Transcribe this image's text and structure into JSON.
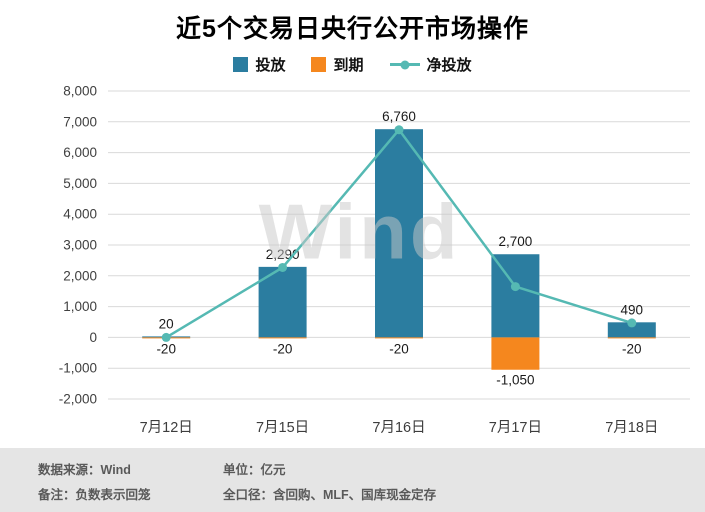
{
  "title": "近5个交易日央行公开市场操作",
  "watermark": "Wind",
  "legend": [
    {
      "label": "投放",
      "color": "#2b7da0",
      "type": "bar"
    },
    {
      "label": "到期",
      "color": "#f5871e",
      "type": "bar"
    },
    {
      "label": "净投放",
      "color": "#55b9b3",
      "type": "line"
    }
  ],
  "chart_data": {
    "type": "bar",
    "title": "近5个交易日央行公开市场操作",
    "categories": [
      "7月12日",
      "7月15日",
      "7月16日",
      "7月17日",
      "7月18日"
    ],
    "series": [
      {
        "name": "投放",
        "type": "bar",
        "color": "#2b7da0",
        "values": [
          20,
          2290,
          6760,
          2700,
          490
        ],
        "labels": [
          "20",
          "2,290",
          "6,760",
          "2,700",
          "490"
        ]
      },
      {
        "name": "到期",
        "type": "bar",
        "color": "#f5871e",
        "values": [
          -20,
          -20,
          -20,
          -1050,
          -20
        ],
        "labels": [
          "-20",
          "-20",
          "-20",
          "-1,050",
          "-20"
        ]
      },
      {
        "name": "净投放",
        "type": "line",
        "color": "#55b9b3",
        "values": [
          0,
          2270,
          6740,
          1650,
          470
        ]
      }
    ],
    "ylim": [
      -2000,
      8000
    ],
    "ytick_step": 1000,
    "ytick_labels": [
      "8,000",
      "7,000",
      "6,000",
      "5,000",
      "4,000",
      "3,000",
      "2,000",
      "1,000",
      "0",
      "-1,000",
      "-2,000"
    ],
    "grid": true,
    "legend_position": "top",
    "ylabel": "",
    "xlabel": ""
  },
  "footer": {
    "source_label": "数据来源：Wind",
    "note_label": "备注：负数表示回笼",
    "unit_label": "单位：亿元",
    "scope_label": "全口径：含回购、MLF、国库现金定存"
  }
}
